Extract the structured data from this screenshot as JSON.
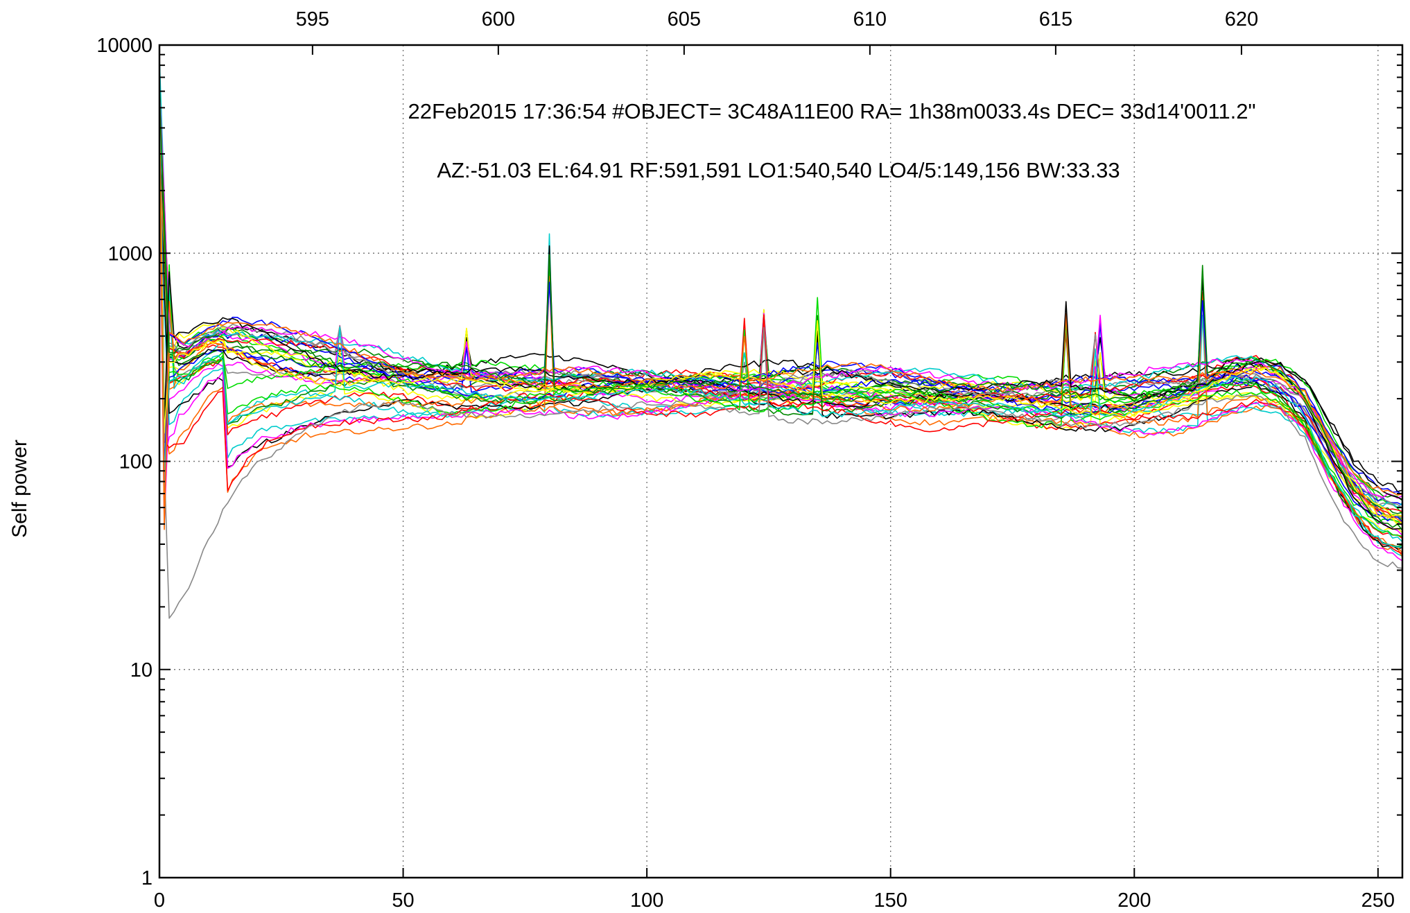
{
  "chart_data": {
    "type": "line",
    "title": "",
    "xlabel": "",
    "ylabel": "Self power",
    "y_scale": "log",
    "xlim": [
      0,
      255
    ],
    "ylim": [
      1,
      10000
    ],
    "grid": true,
    "x_ticks": [
      "0",
      "50",
      "100",
      "150",
      "200",
      "250"
    ],
    "y_ticks": [
      "1",
      "10",
      "100",
      "1000",
      "10000"
    ],
    "top_axis": {
      "label": "",
      "range": [
        590.88,
        624.33
      ],
      "ticks": [
        "595",
        "600",
        "605",
        "610",
        "615",
        "620"
      ]
    },
    "annotations": [
      "22Feb2015 17:36:54  #OBJECT= 3C48A11E00 RA=   1h38m0033.4s DEC=  33d14'0011.2\"",
      "AZ:-51.03  EL:64.91  RF:591,591     LO1:540,540     LO4/5:149,156    BW:33.33"
    ],
    "series_colors": [
      "#ff0000",
      "#00dd00",
      "#0000ff",
      "#ff00ff",
      "#00cccc",
      "#000000",
      "#ffff00",
      "#888888",
      "#ff6a00",
      "#008800"
    ],
    "series_count": 40,
    "envelope": {
      "x": [
        0,
        2,
        5,
        10,
        15,
        20,
        30,
        40,
        50,
        60,
        70,
        80,
        90,
        100,
        110,
        120,
        130,
        140,
        150,
        160,
        170,
        180,
        190,
        200,
        210,
        220,
        225,
        230,
        235,
        240,
        245,
        250,
        255
      ],
      "upper": [
        9000,
        450,
        400,
        440,
        460,
        430,
        370,
        330,
        300,
        290,
        285,
        280,
        275,
        270,
        268,
        265,
        268,
        262,
        255,
        245,
        240,
        240,
        240,
        242,
        270,
        320,
        330,
        300,
        240,
        150,
        95,
        75,
        70
      ],
      "median": [
        5000,
        230,
        250,
        320,
        340,
        320,
        285,
        260,
        240,
        230,
        225,
        228,
        226,
        222,
        220,
        216,
        218,
        215,
        210,
        198,
        192,
        190,
        190,
        190,
        205,
        240,
        245,
        225,
        180,
        110,
        70,
        55,
        50
      ],
      "lower": [
        18,
        16,
        20,
        40,
        70,
        100,
        140,
        160,
        160,
        150,
        165,
        180,
        185,
        185,
        180,
        178,
        180,
        175,
        168,
        160,
        158,
        150,
        150,
        150,
        160,
        180,
        185,
        170,
        130,
        75,
        50,
        38,
        35
      ]
    },
    "spikes": [
      {
        "x": 2,
        "y": 900
      },
      {
        "x": 37,
        "y": 450
      },
      {
        "x": 63,
        "y": 550
      },
      {
        "x": 80,
        "y": 1300
      },
      {
        "x": 120,
        "y": 500
      },
      {
        "x": 124,
        "y": 550
      },
      {
        "x": 135,
        "y": 630
      },
      {
        "x": 186,
        "y": 620
      },
      {
        "x": 192,
        "y": 430
      },
      {
        "x": 193,
        "y": 590
      },
      {
        "x": 214,
        "y": 890
      }
    ]
  }
}
